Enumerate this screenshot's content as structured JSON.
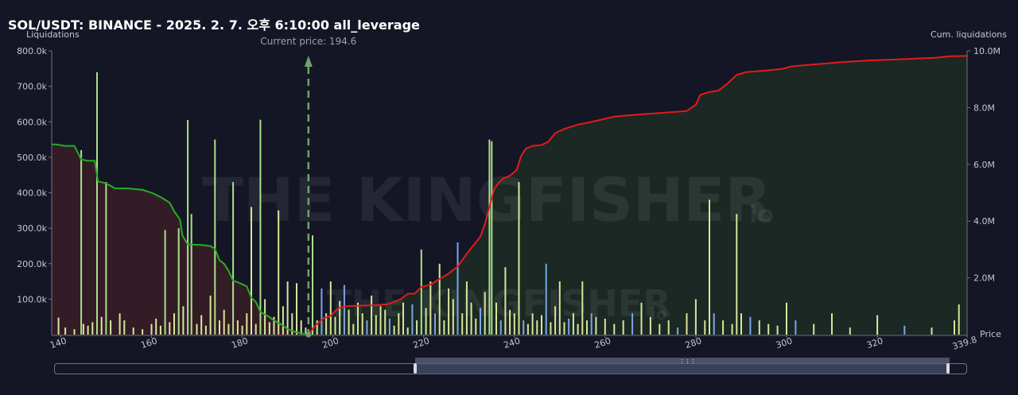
{
  "header": {
    "title": "SOL/USDT: BINANCE - 2025. 2. 7. 오후 6:10:00 all_leverage"
  },
  "watermark": {
    "brand": "THE KINGFISHER",
    "suffix": "io"
  },
  "colors": {
    "background": "#151625",
    "short_liq_bar": "#d8e59a",
    "long_liq_bar": "#7aa6e8",
    "green_bar": "#a9e08a",
    "cum_short_line": "#22b022",
    "cum_long_line": "#e31b1b",
    "left_fill": "#3a1d27",
    "right_fill": "#1c2c25",
    "current_price_line": "#6ea36b"
  },
  "chart_data": {
    "type": "bar",
    "title": "SOL/USDT: BINANCE - 2025. 2. 7. 오후 6:10:00 all_leverage",
    "current_price_label": "Current price: 194.6",
    "current_price": 194.6,
    "xlabel": "Price",
    "ylabel_left": "Liquidations",
    "ylabel_right": "Cum. liquidations",
    "xlim": [
      138,
      339.8
    ],
    "ylim_left": [
      0,
      800000
    ],
    "ylim_right": [
      0,
      10000000
    ],
    "x_ticks": [
      "140",
      "160",
      "180",
      "200",
      "220",
      "240",
      "260",
      "280",
      "300",
      "320",
      "339.8"
    ],
    "y_ticks_left": [
      "100.0k",
      "200.0k",
      "300.0k",
      "400.0k",
      "500.0k",
      "600.0k",
      "700.0k",
      "800.0k"
    ],
    "y_ticks_right": [
      "2.0M",
      "4.0M",
      "6.0M",
      "8.0M",
      "10.0M"
    ],
    "grid": false,
    "series": [
      {
        "role": "liquidations_below_price",
        "bars": [
          [
            139.5,
            48000
          ],
          [
            141,
            20000
          ],
          [
            143,
            15000
          ],
          [
            144.5,
            520000
          ],
          [
            145,
            30000
          ],
          [
            146,
            25000
          ],
          [
            147,
            35000
          ],
          [
            148,
            740000
          ],
          [
            149,
            50000
          ],
          [
            150,
            430000
          ],
          [
            151,
            40000
          ],
          [
            153,
            60000
          ],
          [
            154,
            40000
          ],
          [
            156,
            20000
          ],
          [
            158,
            15000
          ],
          [
            160,
            30000
          ],
          [
            161,
            45000
          ],
          [
            162,
            25000
          ],
          [
            163,
            295000
          ],
          [
            164,
            35000
          ],
          [
            165,
            60000
          ],
          [
            166,
            300000
          ],
          [
            167,
            80000
          ],
          [
            168,
            605000
          ],
          [
            168.8,
            340000
          ],
          [
            170,
            30000
          ],
          [
            171,
            55000
          ],
          [
            172,
            25000
          ],
          [
            173,
            110000
          ],
          [
            174,
            550000
          ],
          [
            175,
            40000
          ],
          [
            176,
            70000
          ],
          [
            177,
            30000
          ],
          [
            178,
            430000
          ],
          [
            179,
            40000
          ],
          [
            180,
            25000
          ],
          [
            181,
            60000
          ],
          [
            182,
            360000
          ],
          [
            183,
            30000
          ],
          [
            184,
            606000
          ],
          [
            185,
            100000
          ],
          [
            186,
            35000
          ],
          [
            187,
            50000
          ],
          [
            188,
            350000
          ],
          [
            189,
            80000
          ],
          [
            190,
            150000
          ],
          [
            191,
            60000
          ],
          [
            192,
            145000
          ],
          [
            193,
            40000
          ],
          [
            194,
            20000
          ]
        ]
      },
      {
        "role": "liquidations_above_price",
        "bars": [
          [
            195.5,
            280000
          ],
          [
            196.5,
            40000
          ],
          [
            197.5,
            130000
          ],
          [
            198.5,
            60000
          ],
          [
            199.5,
            150000
          ],
          [
            200.5,
            50000
          ],
          [
            201.5,
            95000
          ],
          [
            202.5,
            140000
          ],
          [
            203.5,
            70000
          ],
          [
            204.5,
            30000
          ],
          [
            205.5,
            90000
          ],
          [
            206.5,
            60000
          ],
          [
            207.5,
            40000
          ],
          [
            208.5,
            110000
          ],
          [
            209.5,
            55000
          ],
          [
            210.5,
            80000
          ],
          [
            211.5,
            70000
          ],
          [
            212.5,
            45000
          ],
          [
            213.5,
            25000
          ],
          [
            214.5,
            60000
          ],
          [
            215.5,
            90000
          ],
          [
            216.5,
            20000
          ],
          [
            217.5,
            85000
          ],
          [
            218.5,
            40000
          ],
          [
            219.5,
            240000
          ],
          [
            220.5,
            75000
          ],
          [
            221.5,
            150000
          ],
          [
            222.5,
            60000
          ],
          [
            223.5,
            200000
          ],
          [
            224.5,
            40000
          ],
          [
            225.5,
            130000
          ],
          [
            226.5,
            100000
          ],
          [
            227.5,
            260000
          ],
          [
            228.5,
            60000
          ],
          [
            229.5,
            150000
          ],
          [
            230.5,
            90000
          ],
          [
            231.5,
            45000
          ],
          [
            232.5,
            75000
          ],
          [
            233.5,
            120000
          ],
          [
            234.5,
            550000
          ],
          [
            235,
            545000
          ],
          [
            236,
            90000
          ],
          [
            237,
            40000
          ],
          [
            238,
            190000
          ],
          [
            239,
            70000
          ],
          [
            240,
            60000
          ],
          [
            241,
            430000
          ],
          [
            242,
            40000
          ],
          [
            243,
            30000
          ],
          [
            244,
            60000
          ],
          [
            245,
            40000
          ],
          [
            246,
            55000
          ],
          [
            247,
            200000
          ],
          [
            248,
            35000
          ],
          [
            249,
            80000
          ],
          [
            250,
            150000
          ],
          [
            251,
            35000
          ],
          [
            252,
            45000
          ],
          [
            253,
            60000
          ],
          [
            254,
            30000
          ],
          [
            255,
            150000
          ],
          [
            256,
            40000
          ],
          [
            257,
            60000
          ],
          [
            258,
            50000
          ],
          [
            260,
            45000
          ],
          [
            262,
            30000
          ],
          [
            264,
            40000
          ],
          [
            266,
            60000
          ],
          [
            268,
            90000
          ],
          [
            270,
            50000
          ],
          [
            272,
            30000
          ],
          [
            274,
            40000
          ],
          [
            276,
            20000
          ],
          [
            278,
            60000
          ],
          [
            280,
            100000
          ],
          [
            282,
            40000
          ],
          [
            283,
            380000
          ],
          [
            284,
            60000
          ],
          [
            286,
            40000
          ],
          [
            288,
            30000
          ],
          [
            289,
            340000
          ],
          [
            290,
            60000
          ],
          [
            292,
            50000
          ],
          [
            294,
            40000
          ],
          [
            296,
            30000
          ],
          [
            298,
            25000
          ],
          [
            300,
            90000
          ],
          [
            302,
            40000
          ],
          [
            306,
            30000
          ],
          [
            310,
            60000
          ],
          [
            314,
            20000
          ],
          [
            320,
            55000
          ],
          [
            326,
            25000
          ],
          [
            332,
            20000
          ],
          [
            337,
            40000
          ],
          [
            338,
            85000
          ]
        ]
      },
      {
        "role": "cumulative_below_price",
        "points": [
          [
            138,
            6700000
          ],
          [
            139,
            6700000
          ],
          [
            141,
            6650000
          ],
          [
            143,
            6650000
          ],
          [
            144.5,
            6170000
          ],
          [
            146,
            6130000
          ],
          [
            147.5,
            6130000
          ],
          [
            148.2,
            5400000
          ],
          [
            150,
            5330000
          ],
          [
            152,
            5150000
          ],
          [
            155,
            5150000
          ],
          [
            158,
            5100000
          ],
          [
            160,
            5000000
          ],
          [
            162,
            4850000
          ],
          [
            164,
            4650000
          ],
          [
            165,
            4350000
          ],
          [
            166.3,
            4050000
          ],
          [
            166.8,
            3500000
          ],
          [
            168,
            3180000
          ],
          [
            171,
            3160000
          ],
          [
            173,
            3120000
          ],
          [
            174,
            3020000
          ],
          [
            175,
            2620000
          ],
          [
            176,
            2500000
          ],
          [
            177,
            2250000
          ],
          [
            178,
            1900000
          ],
          [
            179,
            1850000
          ],
          [
            181,
            1700000
          ],
          [
            182,
            1300000
          ],
          [
            183,
            1150000
          ],
          [
            184,
            800000
          ],
          [
            186,
            620000
          ],
          [
            187,
            500000
          ],
          [
            189,
            320000
          ],
          [
            190,
            200000
          ],
          [
            192,
            80000
          ],
          [
            194.6,
            0
          ]
        ]
      },
      {
        "role": "cumulative_above_price",
        "points": [
          [
            194.6,
            0
          ],
          [
            196,
            300000
          ],
          [
            198,
            580000
          ],
          [
            199.5,
            660000
          ],
          [
            200.5,
            830000
          ],
          [
            201.5,
            950000
          ],
          [
            203,
            1000000
          ],
          [
            206,
            1020000
          ],
          [
            209,
            1030000
          ],
          [
            212,
            1070000
          ],
          [
            213.5,
            1150000
          ],
          [
            215,
            1250000
          ],
          [
            216.5,
            1440000
          ],
          [
            218,
            1440000
          ],
          [
            219.5,
            1680000
          ],
          [
            221.5,
            1760000
          ],
          [
            223.5,
            1960000
          ],
          [
            225.5,
            2150000
          ],
          [
            227.5,
            2400000
          ],
          [
            229.5,
            2850000
          ],
          [
            230.5,
            3050000
          ],
          [
            231.5,
            3250000
          ],
          [
            232.5,
            3450000
          ],
          [
            233.5,
            3900000
          ],
          [
            234.5,
            4500000
          ],
          [
            235.5,
            5100000
          ],
          [
            236.5,
            5350000
          ],
          [
            237.5,
            5500000
          ],
          [
            239,
            5600000
          ],
          [
            240.5,
            5800000
          ],
          [
            241.5,
            6300000
          ],
          [
            242.5,
            6550000
          ],
          [
            244,
            6650000
          ],
          [
            246,
            6680000
          ],
          [
            247.5,
            6800000
          ],
          [
            249,
            7100000
          ],
          [
            251,
            7250000
          ],
          [
            254,
            7400000
          ],
          [
            257,
            7500000
          ],
          [
            262,
            7680000
          ],
          [
            267,
            7750000
          ],
          [
            272,
            7810000
          ],
          [
            278,
            7880000
          ],
          [
            280,
            8100000
          ],
          [
            281,
            8450000
          ],
          [
            283,
            8550000
          ],
          [
            285,
            8600000
          ],
          [
            287,
            8850000
          ],
          [
            289,
            9150000
          ],
          [
            291,
            9250000
          ],
          [
            295,
            9300000
          ],
          [
            299,
            9360000
          ],
          [
            301,
            9450000
          ],
          [
            306,
            9520000
          ],
          [
            312,
            9600000
          ],
          [
            318,
            9660000
          ],
          [
            326,
            9710000
          ],
          [
            333,
            9760000
          ],
          [
            336,
            9810000
          ],
          [
            339.8,
            9820000
          ]
        ]
      }
    ]
  }
}
